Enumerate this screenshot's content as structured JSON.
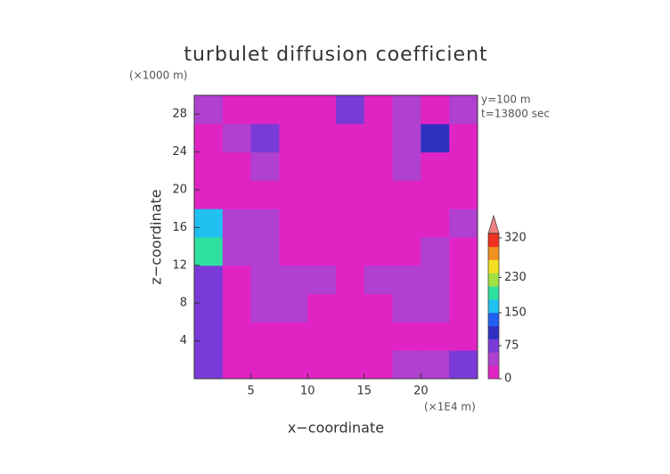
{
  "chart_data": {
    "type": "contour",
    "title": "turbulet diffusion coefficient",
    "x_label": "x−coordinate",
    "y_label": "z−coordinate",
    "x_unit": "(×1E4 m)",
    "y_unit": "(×1000 m)",
    "annotations": [
      "y=100 m",
      "t=13800 sec"
    ],
    "xlim": [
      0,
      25
    ],
    "ylim": [
      0,
      30
    ],
    "xticks": [
      5,
      10,
      15,
      20
    ],
    "yticks": [
      4,
      8,
      12,
      16,
      20,
      24,
      28
    ],
    "z": [
      [
        70,
        25,
        15,
        20,
        15,
        15,
        20,
        30,
        50,
        70
      ],
      [
        60,
        15,
        10,
        10,
        10,
        10,
        10,
        10,
        15,
        20
      ],
      [
        70,
        20,
        35,
        30,
        20,
        20,
        25,
        35,
        30,
        20
      ],
      [
        80,
        25,
        40,
        35,
        30,
        25,
        30,
        40,
        35,
        25
      ],
      [
        180,
        40,
        30,
        20,
        15,
        15,
        20,
        25,
        30,
        25
      ],
      [
        160,
        35,
        30,
        10,
        10,
        15,
        10,
        10,
        20,
        30
      ],
      [
        20,
        10,
        10,
        10,
        10,
        20,
        10,
        10,
        15,
        20
      ],
      [
        15,
        20,
        30,
        10,
        15,
        20,
        10,
        30,
        15,
        10
      ],
      [
        15,
        40,
        70,
        20,
        10,
        25,
        15,
        50,
        90,
        20
      ],
      [
        30,
        15,
        20,
        10,
        10,
        60,
        10,
        40,
        15,
        40
      ]
    ],
    "colorbar": {
      "lim": [
        0,
        330
      ],
      "ticks": [
        0,
        75,
        150,
        230,
        320
      ],
      "colors": [
        "#e024c4",
        "#b040d0",
        "#7a3ad8",
        "#3030c0",
        "#2060f0",
        "#20c0f0",
        "#30e0a0",
        "#a0e040",
        "#f0e020",
        "#f09020",
        "#f03020"
      ]
    }
  }
}
